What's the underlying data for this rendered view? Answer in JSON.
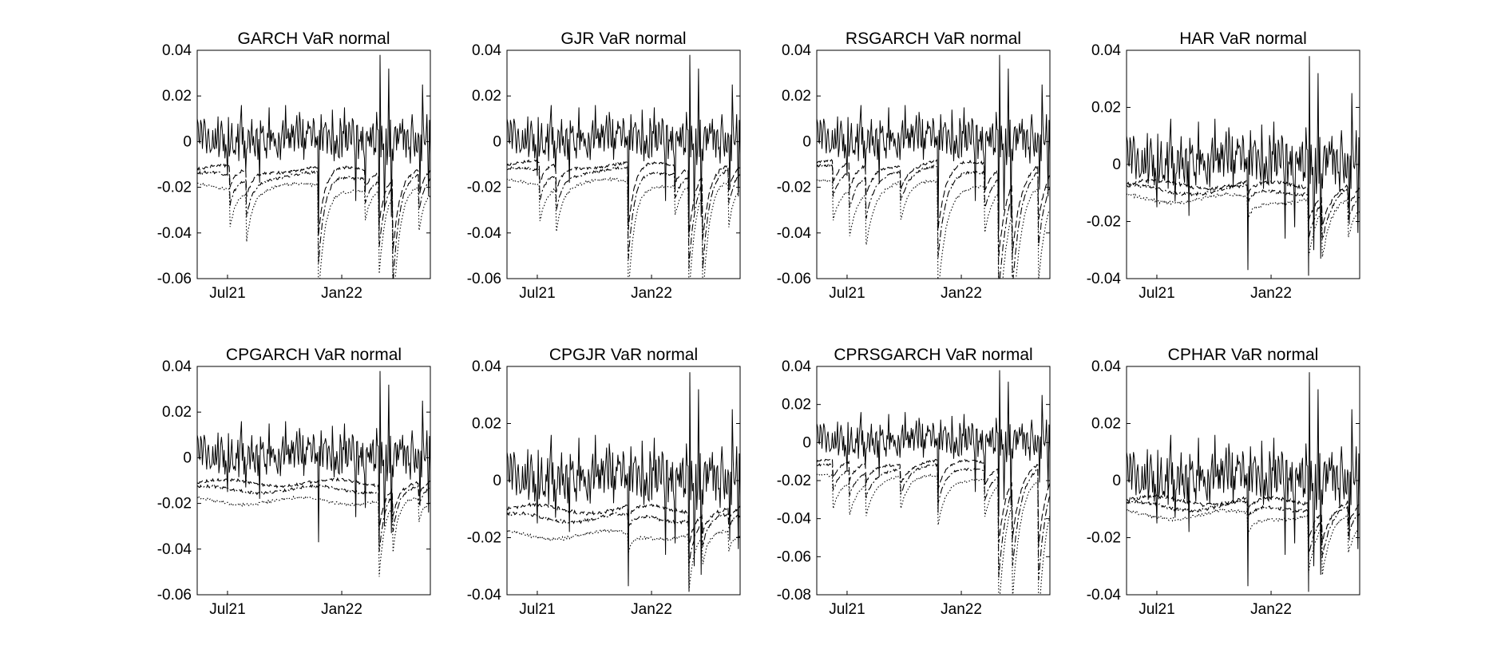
{
  "chart_data": [
    {
      "type": "line",
      "title": "GARCH VaR normal",
      "x_ticks": [
        "Jul21",
        "Jan22"
      ],
      "xlim": [
        "2021-05-24",
        "2022-06-30"
      ],
      "ylim": [
        -0.06,
        0.04
      ],
      "y_ticks": [
        -0.06,
        -0.04,
        -0.02,
        0,
        0.02,
        0.04
      ],
      "y_tick_labels": [
        "-0.06",
        "-0.04",
        "-0.02",
        "0",
        "0.02",
        "0.04"
      ],
      "var_levels": [
        -0.012,
        -0.015,
        -0.02
      ],
      "shocks": [
        [
          0.14,
          -0.01
        ],
        [
          0.21,
          -0.013
        ],
        [
          0.52,
          -0.03
        ],
        [
          0.72,
          -0.008
        ],
        [
          0.78,
          -0.022
        ],
        [
          0.84,
          -0.032
        ],
        [
          0.95,
          -0.012
        ]
      ],
      "var_decay": 0.6
    },
    {
      "type": "line",
      "title": "GJR VaR normal",
      "x_ticks": [
        "Jul21",
        "Jan22"
      ],
      "xlim": [
        "2021-05-24",
        "2022-06-30"
      ],
      "ylim": [
        -0.06,
        0.04
      ],
      "y_ticks": [
        -0.06,
        -0.04,
        -0.02,
        0,
        0.02,
        0.04
      ],
      "y_tick_labels": [
        "-0.06",
        "-0.04",
        "-0.02",
        "0",
        "0.02",
        "0.04"
      ],
      "var_levels": [
        -0.01,
        -0.013,
        -0.018
      ],
      "shocks": [
        [
          0.14,
          -0.01
        ],
        [
          0.21,
          -0.012
        ],
        [
          0.52,
          -0.03
        ],
        [
          0.72,
          -0.008
        ],
        [
          0.78,
          -0.03
        ],
        [
          0.84,
          -0.028
        ],
        [
          0.95,
          -0.012
        ]
      ],
      "var_decay": 0.6
    },
    {
      "type": "line",
      "title": "RSGARCH VaR normal",
      "x_ticks": [
        "Jul21",
        "Jan22"
      ],
      "xlim": [
        "2021-05-24",
        "2022-06-30"
      ],
      "ylim": [
        -0.06,
        0.04
      ],
      "y_ticks": [
        -0.06,
        -0.04,
        -0.02,
        0,
        0.02,
        0.04
      ],
      "y_tick_labels": [
        "-0.06",
        "-0.04",
        "-0.02",
        "0",
        "0.02",
        "0.04"
      ],
      "var_levels": [
        -0.009,
        -0.012,
        -0.018
      ],
      "shocks": [
        [
          0.07,
          -0.01
        ],
        [
          0.14,
          -0.012
        ],
        [
          0.21,
          -0.014
        ],
        [
          0.36,
          -0.01
        ],
        [
          0.52,
          -0.03
        ],
        [
          0.72,
          -0.012
        ],
        [
          0.78,
          -0.038
        ],
        [
          0.84,
          -0.03
        ],
        [
          0.95,
          -0.025
        ]
      ],
      "var_decay": 0.45
    },
    {
      "type": "line",
      "title": "HAR VaR normal",
      "x_ticks": [
        "Jul21",
        "Jan22"
      ],
      "xlim": [
        "2021-05-24",
        "2022-06-30"
      ],
      "ylim": [
        -0.04,
        0.04
      ],
      "y_ticks": [
        -0.04,
        -0.02,
        0,
        0.02,
        0.04
      ],
      "y_tick_labels": [
        "-0.04",
        "-0.02",
        "0",
        "0.02",
        "0.04"
      ],
      "var_levels": [
        -0.007,
        -0.009,
        -0.012
      ],
      "shocks": [
        [
          0.52,
          -0.004
        ],
        [
          0.78,
          -0.012
        ],
        [
          0.84,
          -0.01
        ],
        [
          0.95,
          -0.008
        ]
      ],
      "var_decay": 0.4
    },
    {
      "type": "line",
      "title": "CPGARCH VaR normal",
      "x_ticks": [
        "Jul21",
        "Jan22"
      ],
      "xlim": [
        "2021-05-24",
        "2022-06-30"
      ],
      "ylim": [
        -0.06,
        0.04
      ],
      "y_ticks": [
        -0.06,
        -0.04,
        -0.02,
        0,
        0.02,
        0.04
      ],
      "y_tick_labels": [
        "-0.06",
        "-0.04",
        "-0.02",
        "0",
        "0.02",
        "0.04"
      ],
      "var_levels": [
        -0.011,
        -0.014,
        -0.019
      ],
      "shocks": [
        [
          0.78,
          -0.02
        ],
        [
          0.84,
          -0.012
        ],
        [
          0.95,
          -0.006
        ]
      ],
      "var_decay": 0.7
    },
    {
      "type": "line",
      "title": "CPGJR VaR normal",
      "x_ticks": [
        "Jul21",
        "Jan22"
      ],
      "xlim": [
        "2021-05-24",
        "2022-06-30"
      ],
      "ylim": [
        -0.04,
        0.04
      ],
      "y_ticks": [
        -0.04,
        -0.02,
        0,
        0.02,
        0.04
      ],
      "y_tick_labels": [
        "-0.04",
        "-0.02",
        "0",
        "0.02",
        "0.04"
      ],
      "var_levels": [
        -0.01,
        -0.013,
        -0.019
      ],
      "shocks": [
        [
          0.52,
          -0.004
        ],
        [
          0.78,
          -0.012
        ],
        [
          0.84,
          -0.006
        ],
        [
          0.95,
          -0.004
        ]
      ],
      "var_decay": 0.7
    },
    {
      "type": "line",
      "title": "CPRSGARCH VaR normal",
      "x_ticks": [
        "Jul21",
        "Jan22"
      ],
      "xlim": [
        "2021-05-24",
        "2022-06-30"
      ],
      "ylim": [
        -0.08,
        0.04
      ],
      "y_ticks": [
        -0.08,
        -0.06,
        -0.04,
        -0.02,
        0,
        0.02,
        0.04
      ],
      "y_tick_labels": [
        "-0.08",
        "-0.06",
        "-0.04",
        "-0.02",
        "0",
        "0.02",
        "0.04"
      ],
      "var_levels": [
        -0.01,
        -0.013,
        -0.018
      ],
      "shocks": [
        [
          0.07,
          -0.01
        ],
        [
          0.14,
          -0.01
        ],
        [
          0.21,
          -0.01
        ],
        [
          0.36,
          -0.01
        ],
        [
          0.52,
          -0.015
        ],
        [
          0.72,
          -0.012
        ],
        [
          0.78,
          -0.04
        ],
        [
          0.84,
          -0.03
        ],
        [
          0.95,
          -0.045
        ]
      ],
      "var_decay": 0.45
    },
    {
      "type": "line",
      "title": "CPHAR VaR normal",
      "x_ticks": [
        "Jul21",
        "Jan22"
      ],
      "xlim": [
        "2021-05-24",
        "2022-06-30"
      ],
      "ylim": [
        -0.04,
        0.04
      ],
      "y_ticks": [
        -0.04,
        -0.02,
        0,
        0.02,
        0.04
      ],
      "y_tick_labels": [
        "-0.04",
        "-0.02",
        "0",
        "0.02",
        "0.04"
      ],
      "var_levels": [
        -0.007,
        -0.009,
        -0.012
      ],
      "shocks": [
        [
          0.52,
          -0.004
        ],
        [
          0.78,
          -0.012
        ],
        [
          0.84,
          -0.01
        ],
        [
          0.95,
          -0.008
        ]
      ],
      "var_decay": 0.4
    }
  ],
  "common": {
    "line_color": "#000000",
    "axis_color": "#000000",
    "background": "#ffffff",
    "returns_line": "solid",
    "var_lines": [
      "dashed",
      "dash-dot",
      "dotted"
    ]
  }
}
